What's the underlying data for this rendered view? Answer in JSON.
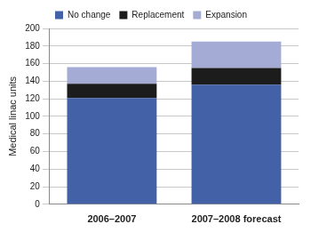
{
  "chart_data": {
    "type": "bar",
    "y_label": "Medical linac units",
    "categories": [
      "2006–2007",
      "2007–2008 forecast"
    ],
    "series": [
      {
        "name": "No change",
        "color": "#4361a6",
        "values": [
          121,
          136
        ]
      },
      {
        "name": "Replacement",
        "color": "#1c1c1c",
        "values": [
          16,
          19
        ]
      },
      {
        "name": "Expansion",
        "color": "#a4acd6",
        "values": [
          19,
          30
        ]
      }
    ],
    "stacked": true,
    "ylim": [
      0,
      200
    ],
    "yticks": [
      0,
      20,
      40,
      60,
      80,
      100,
      120,
      140,
      160,
      180,
      200
    ],
    "grid": true,
    "legend": "top"
  }
}
